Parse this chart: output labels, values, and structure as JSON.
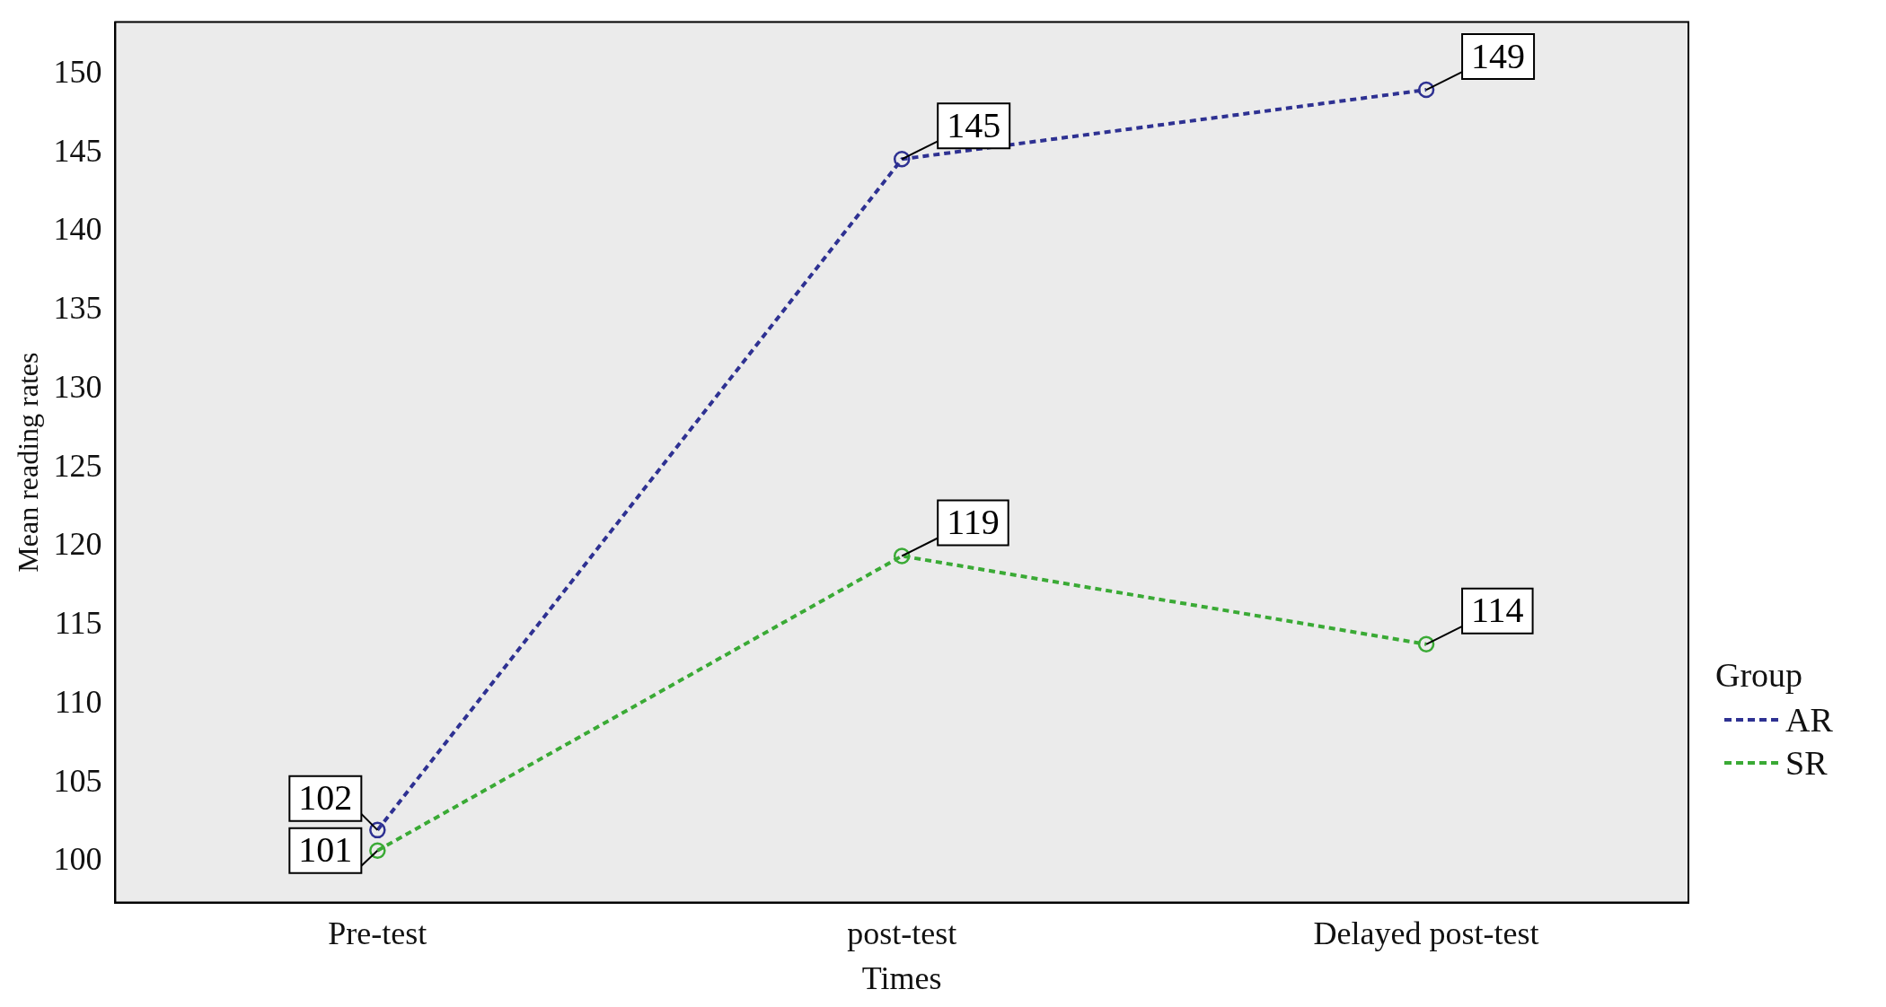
{
  "chart_data": {
    "type": "line",
    "xlabel": "Times",
    "ylabel": "Mean reading rates",
    "legend_title": "Group",
    "categories": [
      "Pre-test",
      "post-test",
      "Delayed post-test"
    ],
    "series": [
      {
        "name": "AR",
        "color": "#2e3192",
        "values": [
          102,
          144.6,
          149
        ],
        "value_labels": [
          "102",
          "145",
          "149"
        ]
      },
      {
        "name": "SR",
        "color": "#3aaa35",
        "values": [
          100.7,
          119.4,
          113.8
        ],
        "value_labels": [
          "101",
          "119",
          "114"
        ]
      }
    ],
    "ylim": [
      97.4,
      153.3
    ],
    "yticks": [
      100,
      105,
      110,
      115,
      120,
      125,
      130,
      135,
      140,
      145,
      150
    ],
    "grid": false,
    "legend": "right",
    "marker": "circle",
    "line_style": "dashed"
  }
}
